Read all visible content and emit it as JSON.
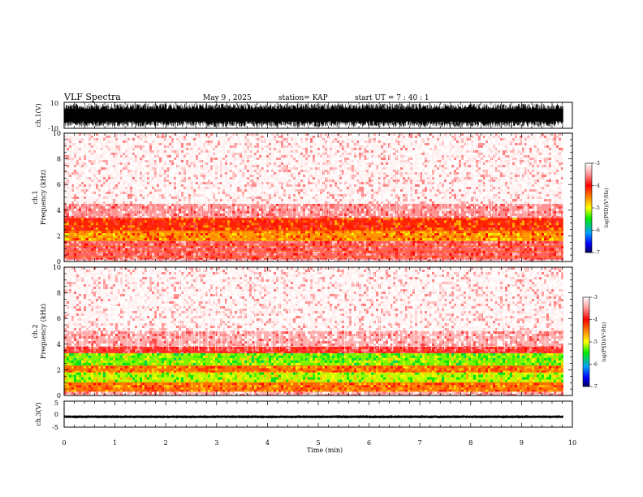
{
  "header": {
    "title": "VLF Spectra",
    "date": "May 9 , 2025",
    "station": "station= KAP",
    "start": "start UT = 7 : 40 : 1"
  },
  "chart_data": [
    {
      "type": "line",
      "name": "ch1-waveform",
      "ylabel": "ch.1(V)",
      "ylim": [
        -10,
        10
      ],
      "ytick_labels": [
        "10",
        "-10"
      ],
      "xlim": [
        0,
        10
      ],
      "data_end_min": 9.82,
      "amplitude_range": [
        -9,
        9
      ]
    },
    {
      "type": "heatmap",
      "name": "ch1-spectrogram",
      "ylabel_line1": "ch.1",
      "ylabel_line2": "Frequency (kHz)",
      "ylim": [
        0,
        10
      ],
      "ytick_labels": [
        "0",
        "2",
        "4",
        "6",
        "8",
        "10"
      ],
      "xlim": [
        0,
        10
      ],
      "data_end_min": 9.82,
      "zlim": [
        -7,
        -3
      ],
      "colorbar_label": "log(PSD)(V²/Hz)",
      "colorbar_ticks": [
        "-3",
        "-4",
        "-5",
        "-6",
        "-7"
      ],
      "bands_khz": [
        {
          "from": 0.0,
          "to": 0.15,
          "level": -3.2
        },
        {
          "from": 0.15,
          "to": 1.6,
          "level": -3.6
        },
        {
          "from": 1.6,
          "to": 2.4,
          "level": -4.4
        },
        {
          "from": 2.4,
          "to": 3.4,
          "level": -4.1
        },
        {
          "from": 3.4,
          "to": 4.5,
          "level": -3.4
        },
        {
          "from": 4.5,
          "to": 10.0,
          "level": -3.05
        }
      ],
      "lines_khz": [
        0.4,
        0.8,
        1.2,
        1.9,
        2.3
      ]
    },
    {
      "type": "heatmap",
      "name": "ch2-spectrogram",
      "ylabel_line1": "ch.2",
      "ylabel_line2": "Frequency (kHz)",
      "ylim": [
        0,
        10
      ],
      "ytick_labels": [
        "0",
        "2",
        "4",
        "6",
        "8",
        "10"
      ],
      "xlim": [
        0,
        10
      ],
      "data_end_min": 9.82,
      "zlim": [
        -7,
        -3
      ],
      "colorbar_label": "log(PSD)(V²/Hz)",
      "colorbar_ticks": [
        "-3",
        "-4",
        "-5",
        "-6",
        "-7"
      ],
      "bands_khz": [
        {
          "from": 0.0,
          "to": 0.3,
          "level": -3.3
        },
        {
          "from": 0.3,
          "to": 1.0,
          "level": -4.3
        },
        {
          "from": 1.0,
          "to": 1.8,
          "level": -4.9
        },
        {
          "from": 1.8,
          "to": 2.3,
          "level": -4.3
        },
        {
          "from": 2.3,
          "to": 3.3,
          "level": -5.0
        },
        {
          "from": 3.3,
          "to": 3.8,
          "level": -3.8
        },
        {
          "from": 3.8,
          "to": 5.0,
          "level": -3.3
        },
        {
          "from": 5.0,
          "to": 10.0,
          "level": -3.05
        }
      ],
      "lines_khz": [
        0.5,
        1.0,
        2.0,
        2.3
      ]
    },
    {
      "type": "line",
      "name": "ch3-waveform",
      "ylabel": "ch.3(V)",
      "ylim": [
        -5,
        5
      ],
      "ytick_labels": [
        "5",
        "0",
        "-5"
      ],
      "xlim": [
        0,
        10
      ],
      "data_end_min": 9.82,
      "amplitude_range": [
        -1.6,
        -0.4
      ]
    }
  ],
  "xaxis": {
    "label": "Time (min)",
    "tick_labels": [
      "0",
      "1",
      "2",
      "3",
      "4",
      "5",
      "6",
      "7",
      "8",
      "9",
      "10"
    ]
  },
  "colors": {
    "background": "#ffffff",
    "ink": "#000000"
  }
}
